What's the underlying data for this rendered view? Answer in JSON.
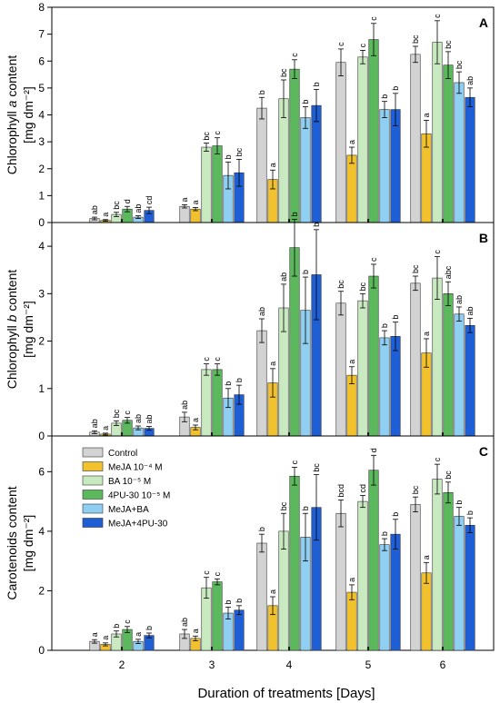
{
  "chart_data": {
    "type": "bar",
    "x": [
      2,
      3,
      4,
      5,
      6
    ],
    "xlabel": "Duration of treatments [Days]",
    "series_legend": [
      {
        "name": "Control",
        "color": "#d3d3d3"
      },
      {
        "name": "MeJA 10⁻⁴ M",
        "color": "#f2c12e"
      },
      {
        "name": "BA 10⁻⁵ M",
        "color": "#c9eac0"
      },
      {
        "name": "4PU-30 10⁻⁵ M",
        "color": "#5cb85c"
      },
      {
        "name": "MeJA+BA",
        "color": "#8ecff2"
      },
      {
        "name": "MeJA+4PU-30",
        "color": "#1f5fd6"
      }
    ],
    "panels": [
      {
        "letter": "A",
        "ylabel_line1_pre": "Chlorophyll ",
        "ylabel_line1_italic": "a",
        "ylabel_line1_post": " content",
        "ylabel_line2": "[mg dm⁻²]",
        "ylim": [
          0,
          8
        ],
        "yticks": [
          0,
          1,
          2,
          3,
          4,
          5,
          6,
          7,
          8
        ],
        "values": [
          [
            0.15,
            0.08,
            0.3,
            0.5,
            0.2,
            0.45
          ],
          [
            0.6,
            0.5,
            2.8,
            2.85,
            1.75,
            1.85
          ],
          [
            4.25,
            1.6,
            4.6,
            5.7,
            3.9,
            4.35
          ],
          [
            5.95,
            2.5,
            6.15,
            6.8,
            4.2,
            4.2
          ],
          [
            6.25,
            3.3,
            6.7,
            5.85,
            5.2,
            4.65
          ]
        ],
        "errors": [
          [
            0.05,
            0.03,
            0.08,
            0.1,
            0.05,
            0.12
          ],
          [
            0.06,
            0.06,
            0.15,
            0.3,
            0.5,
            0.5
          ],
          [
            0.4,
            0.35,
            0.7,
            0.35,
            0.4,
            0.6
          ],
          [
            0.5,
            0.3,
            0.25,
            0.6,
            0.3,
            0.6
          ],
          [
            0.3,
            0.5,
            0.8,
            0.5,
            0.4,
            0.35
          ]
        ],
        "letters": [
          [
            "ab",
            "a",
            "bc",
            "d",
            "ab",
            "cd"
          ],
          [
            "a",
            "a",
            "bc",
            "c",
            "b",
            "bc"
          ],
          [
            "b",
            "a",
            "bc",
            "c",
            "b",
            "b"
          ],
          [
            "c",
            "a",
            "c",
            "c",
            "b",
            "b"
          ],
          [
            "bc",
            "a",
            "c",
            "bc",
            "bc",
            "ab"
          ]
        ]
      },
      {
        "letter": "B",
        "ylabel_line1_pre": "Chlorophyll ",
        "ylabel_line1_italic": "b",
        "ylabel_line1_post": " content",
        "ylabel_line2": "[mg dm⁻²]",
        "ylim": [
          0,
          4.5
        ],
        "yticks": [
          0,
          1,
          2,
          3,
          4
        ],
        "values": [
          [
            0.08,
            0.04,
            0.27,
            0.33,
            0.17,
            0.16
          ],
          [
            0.4,
            0.18,
            1.4,
            1.4,
            0.8,
            0.87
          ],
          [
            2.22,
            1.12,
            2.7,
            3.97,
            2.65,
            3.4
          ],
          [
            2.8,
            1.28,
            2.85,
            3.37,
            2.07,
            2.1
          ],
          [
            3.22,
            1.75,
            3.33,
            3.0,
            2.57,
            2.33
          ]
        ],
        "errors": [
          [
            0.03,
            0.02,
            0.05,
            0.06,
            0.04,
            0.04
          ],
          [
            0.1,
            0.05,
            0.12,
            0.12,
            0.2,
            0.2
          ],
          [
            0.25,
            0.3,
            0.5,
            0.6,
            0.7,
            0.95
          ],
          [
            0.25,
            0.18,
            0.15,
            0.25,
            0.15,
            0.3
          ],
          [
            0.15,
            0.3,
            0.45,
            0.25,
            0.15,
            0.15
          ]
        ],
        "letters": [
          [
            "ab",
            "a",
            "bc",
            "c",
            "ab",
            "ab"
          ],
          [
            "ab",
            "a",
            "c",
            "c",
            "b",
            "b"
          ],
          [
            "ab",
            "a",
            "ab",
            "b",
            "b",
            "b"
          ],
          [
            "bc",
            "a",
            "bc",
            "c",
            "b",
            "b"
          ],
          [
            "bc",
            "a",
            "c",
            "abc",
            "ab",
            "ab"
          ]
        ]
      },
      {
        "letter": "C",
        "ylabel_line1": "Carotenoids content",
        "ylabel_line2": "[mg dm⁻²]",
        "ylim": [
          0,
          7.2
        ],
        "yticks": [
          0,
          2,
          4,
          6
        ],
        "values": [
          [
            0.3,
            0.2,
            0.55,
            0.7,
            0.3,
            0.5
          ],
          [
            0.55,
            0.4,
            2.1,
            2.3,
            1.25,
            1.35
          ],
          [
            3.6,
            1.5,
            4.0,
            5.85,
            3.8,
            4.8
          ],
          [
            4.6,
            1.95,
            5.0,
            6.05,
            3.55,
            3.9
          ],
          [
            4.9,
            2.6,
            5.75,
            5.3,
            4.5,
            4.2
          ]
        ],
        "errors": [
          [
            0.06,
            0.05,
            0.1,
            0.1,
            0.07,
            0.08
          ],
          [
            0.15,
            0.08,
            0.35,
            0.1,
            0.2,
            0.15
          ],
          [
            0.3,
            0.3,
            0.6,
            0.3,
            0.8,
            1.1
          ],
          [
            0.45,
            0.25,
            0.2,
            0.5,
            0.2,
            0.5
          ],
          [
            0.25,
            0.35,
            0.5,
            0.35,
            0.3,
            0.25
          ]
        ],
        "letters": [
          [
            "a",
            "a",
            "b",
            "c",
            "a",
            "b"
          ],
          [
            "ab",
            "a",
            "c",
            "c",
            "b",
            "b"
          ],
          [
            "b",
            "a",
            "bc",
            "c",
            "b",
            "bc"
          ],
          [
            "bcd",
            "a",
            "cd",
            "d",
            "b",
            "b"
          ],
          [
            "bc",
            "a",
            "c",
            "bc",
            "b",
            "b"
          ]
        ]
      }
    ]
  }
}
